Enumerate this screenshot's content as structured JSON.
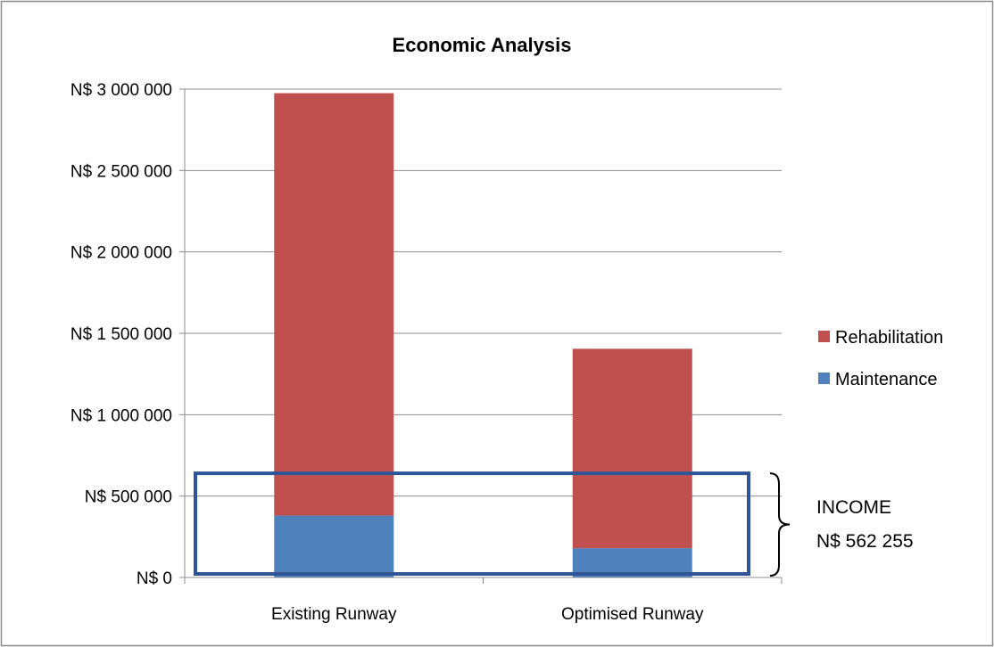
{
  "chart_data": {
    "type": "bar",
    "stacked": true,
    "title": "Economic Analysis",
    "xlabel": "",
    "ylabel": "",
    "categories": [
      "Existing Runway",
      "Optimised Runway"
    ],
    "series": [
      {
        "name": "Maintenance",
        "values": [
          380000,
          180000
        ],
        "color": "#4F81BD"
      },
      {
        "name": "Rehabilitation",
        "values": [
          2595000,
          1225000
        ],
        "color": "#C0504D"
      }
    ],
    "ylim": [
      0,
      3000000
    ],
    "yticks": [
      0,
      500000,
      1000000,
      1500000,
      2000000,
      2500000,
      3000000
    ],
    "ytick_labels": [
      "N$ 0",
      "N$ 500 000",
      "N$ 1 000 000",
      "N$ 1 500 000",
      "N$ 2 000 000",
      "N$ 2 500 000",
      "N$ 3 000 000"
    ],
    "grid": true,
    "legend_position": "right",
    "legend_order": [
      "Rehabilitation",
      "Maintenance"
    ],
    "annotation": {
      "line1": "INCOME",
      "line2": "N$ 562 255",
      "value": 562255,
      "box_top_value": 640000,
      "box_color": "#2F5597"
    }
  }
}
